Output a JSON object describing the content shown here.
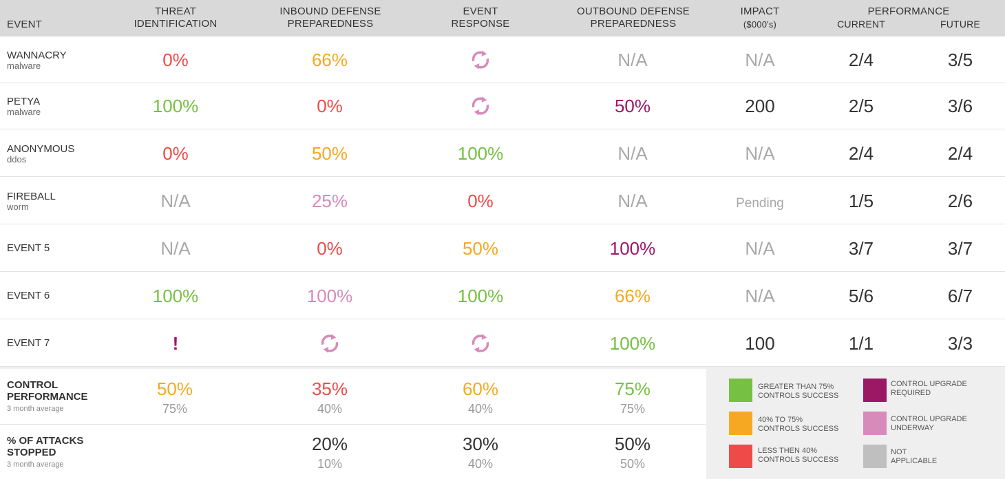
{
  "columns": {
    "event": "EVENT",
    "threat_1": "THREAT",
    "threat_2": "IDENTIFICATION",
    "inbound_1": "INBOUND DEFENSE",
    "inbound_2": "PREPAREDNESS",
    "response_1": "EVENT",
    "response_2": "RESPONSE",
    "outbound_1": "OUTBOUND DEFENSE",
    "outbound_2": "PREPAREDNESS",
    "impact_1": "IMPACT",
    "impact_2": "($000's)",
    "performance": "PERFORMANCE",
    "current": "CURRENT",
    "future": "FUTURE"
  },
  "colors": {
    "green": "#76c043",
    "orange": "#f7a823",
    "red": "#ee4b48",
    "pink": "#d68bbb",
    "purple": "#9b1864",
    "gray": "#a8a8a8",
    "header_bg": "#d9d9d9",
    "legend_bg": "#efefef"
  },
  "rows": [
    {
      "name": "WANNACRY",
      "sub": "malware",
      "threat": "0%",
      "inbound": "66%",
      "response": "sync-icon",
      "outbound": "N/A",
      "impact": "N/A",
      "current": "2/4",
      "future": "3/5"
    },
    {
      "name": "PETYA",
      "sub": "malware",
      "threat": "100%",
      "inbound": "0%",
      "response": "sync-icon",
      "outbound": "50%",
      "impact": "200",
      "current": "2/5",
      "future": "3/6"
    },
    {
      "name": "ANONYMOUS",
      "sub": "ddos",
      "threat": "0%",
      "inbound": "50%",
      "response": "100%",
      "outbound": "N/A",
      "impact": "N/A",
      "current": "2/4",
      "future": "2/4"
    },
    {
      "name": "FIREBALL",
      "sub": "worm",
      "threat": "N/A",
      "inbound": "25%",
      "response": "0%",
      "outbound": "N/A",
      "impact": "Pending",
      "current": "1/5",
      "future": "2/6"
    },
    {
      "name": "EVENT 5",
      "sub": "",
      "threat": "N/A",
      "inbound": "0%",
      "response": "50%",
      "outbound": "100%",
      "impact": "N/A",
      "current": "3/7",
      "future": "3/7"
    },
    {
      "name": "EVENT 6",
      "sub": "",
      "threat": "100%",
      "inbound": "100%",
      "response": "100%",
      "outbound": "66%",
      "impact": "N/A",
      "current": "5/6",
      "future": "6/7"
    },
    {
      "name": "EVENT 7",
      "sub": "",
      "threat": "!",
      "inbound": "sync-icon",
      "response": "sync-icon",
      "outbound": "100%",
      "impact": "100",
      "current": "1/1",
      "future": "3/3"
    }
  ],
  "control": {
    "title_1": "CONTROL",
    "title_2": "PERFORMANCE",
    "sub": "3 month average",
    "threat": "50%",
    "threat_avg": "75%",
    "inbound": "35%",
    "inbound_avg": "40%",
    "response": "60%",
    "response_avg": "40%",
    "outbound": "75%",
    "outbound_avg": "75%"
  },
  "stopped": {
    "title_1": "% OF ATTACKS",
    "title_2": "STOPPED",
    "sub": "3 month average",
    "inbound": "20%",
    "inbound_avg": "10%",
    "response": "30%",
    "response_avg": "40%",
    "outbound": "50%",
    "outbound_avg": "50%"
  },
  "legend": {
    "green_1": "GREATER THAN 75%",
    "green_2": "CONTROLS SUCCESS",
    "orange_1": "40% TO 75%",
    "orange_2": "CONTROLS SUCCESS",
    "red_1": "LESS THEN 40%",
    "red_2": "CONTROLS SUCCESS",
    "purple_1": "CONTROL UPGRADE",
    "purple_2": "REQUIRED",
    "pink_1": "CONTROL UPGRADE",
    "pink_2": "UNDERWAY",
    "gray_1": "NOT",
    "gray_2": "APPLICABLE"
  }
}
